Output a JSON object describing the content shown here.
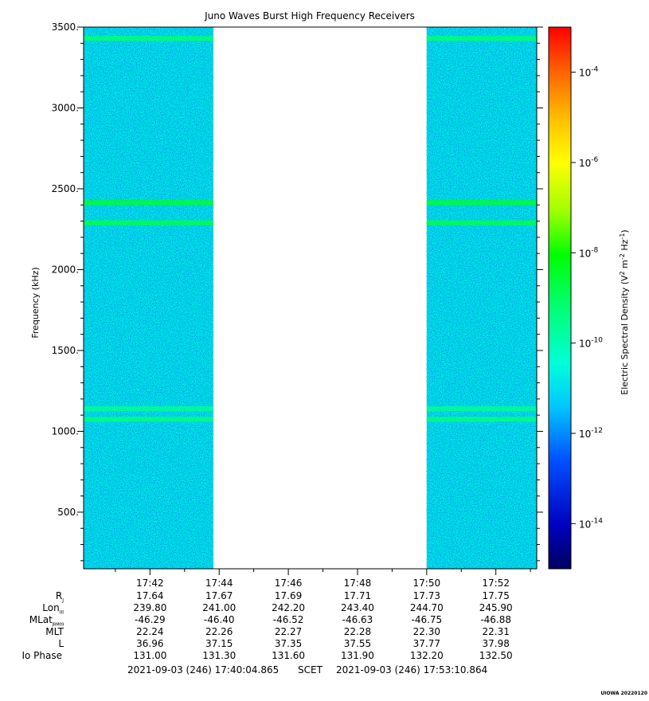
{
  "chart_data": {
    "type": "heatmap",
    "title": "Juno Waves Burst High Frequency Receivers",
    "ylabel": "Frequency (kHz)",
    "ylim": [
      150,
      3500
    ],
    "y_ticks": [
      "500.",
      "1000.",
      "1500.",
      "2000.",
      "2500.",
      "3000.",
      "3500."
    ],
    "y_tick_values": [
      500,
      1000,
      1500,
      2000,
      2500,
      3000,
      3500
    ],
    "x_time_range": [
      "17:40:04.865",
      "17:53:10.864"
    ],
    "x_ticks": [
      "17:42",
      "17:44",
      "17:46",
      "17:48",
      "17:50",
      "17:52"
    ],
    "x_tick_minutes": [
      42,
      44,
      46,
      48,
      50,
      52
    ],
    "data_gap": [
      "17:43:50",
      "17:50:00"
    ],
    "background_intensity_log10": -12,
    "emission_bands_kHz": [
      {
        "freq": 3430,
        "log10": -10.8
      },
      {
        "freq": 2415,
        "log10": -10.3
      },
      {
        "freq": 2290,
        "log10": -10.5
      },
      {
        "freq": 1140,
        "log10": -11.1
      },
      {
        "freq": 1075,
        "log10": -10.9
      }
    ],
    "colorbar": {
      "label_pre": "Electric Spectral Density (V",
      "label_mid1": " m",
      "label_mid2": " Hz",
      "label_post": ")",
      "label_sup1": "2",
      "label_sup2": "-2",
      "label_sup3": "-1",
      "range_log10": [
        -15,
        -3
      ],
      "ticks": [
        {
          "base": "10",
          "exp": "-4"
        },
        {
          "base": "10",
          "exp": "-6"
        },
        {
          "base": "10",
          "exp": "-8"
        },
        {
          "base": "10",
          "exp": "-10"
        },
        {
          "base": "10",
          "exp": "-12"
        },
        {
          "base": "10",
          "exp": "-14"
        }
      ],
      "tick_values": [
        -4,
        -6,
        -8,
        -10,
        -12,
        -14
      ]
    }
  },
  "ephemeris": {
    "labels": {
      "rj": "R",
      "rj_sub": "J",
      "lon": "Lon",
      "lon_sub": "III",
      "mlat": "MLat",
      "mlat_sub": "JRM09",
      "mlt": "MLT",
      "l": "L",
      "io": "Io Phase"
    },
    "rows": [
      [
        "17.64",
        "17.67",
        "17.69",
        "17.71",
        "17.73",
        "17.75"
      ],
      [
        "239.80",
        "241.00",
        "242.20",
        "243.40",
        "244.70",
        "245.90"
      ],
      [
        "-46.29",
        "-46.40",
        "-46.52",
        "-46.63",
        "-46.75",
        "-46.88"
      ],
      [
        "22.24",
        "22.26",
        "22.27",
        "22.28",
        "22.30",
        "22.31"
      ],
      [
        "36.96",
        "37.15",
        "37.35",
        "37.55",
        "37.77",
        "37.98"
      ],
      [
        "131.00",
        "131.30",
        "131.60",
        "131.90",
        "132.20",
        "132.50"
      ]
    ]
  },
  "footer": {
    "start": "2021-09-03 (246) 17:40:04.865",
    "scet": "SCET",
    "end": "2021-09-03 (246) 17:53:10.864",
    "stamp": "UIOWA 20220120"
  }
}
